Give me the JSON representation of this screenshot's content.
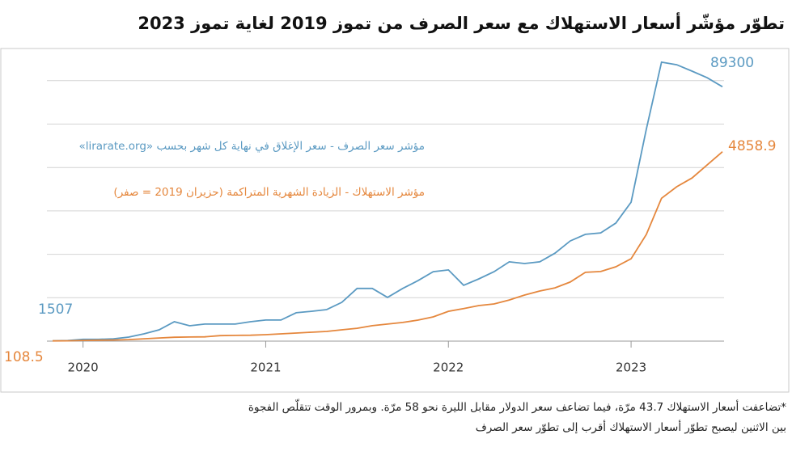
{
  "chart_data": {
    "type": "line",
    "title": "تطوّر مؤشّر أسعار الاستهلاك مع سعر الصرف من تموز 2019 لغاية تموز 2023",
    "note": "*تضاعفت أسعار الاستهلاك 43.7 مرّة، فيما تضاعف سعر الدولار مقابل الليرة نحو 58 مرّة. وبمرور الوقت تتقلّص الفجوة بين الاثنين ليصبح تطوّر أسعار الاستهلاك أقرب إلى تطوّر سعر الصرف",
    "categories": [
      null,
      null,
      "2020",
      null,
      null,
      null,
      null,
      null,
      null,
      null,
      null,
      null,
      null,
      null,
      "2021",
      null,
      null,
      null,
      null,
      null,
      null,
      null,
      null,
      null,
      null,
      null,
      "2022",
      null,
      null,
      null,
      null,
      null,
      null,
      null,
      null,
      null,
      null,
      null,
      "2023",
      null,
      null,
      null,
      null,
      null,
      null
    ],
    "ylim": [
      0,
      100000
    ],
    "y2lim": [
      0,
      7270
    ],
    "grid": true,
    "series": [
      {
        "name": "مؤشر سعر الصرف - سعر الإغلاق في نهاية كل شهر بحسب «lirarate.org»",
        "color": "#5b9ac2",
        "values": [
          1507,
          1600,
          2000,
          2000,
          2200,
          2800,
          3900,
          5300,
          8100,
          6700,
          7300,
          7300,
          7300,
          8100,
          8700,
          8700,
          11200,
          11700,
          12300,
          14800,
          19600,
          19600,
          16500,
          19600,
          22300,
          25400,
          26000,
          20700,
          22900,
          25400,
          28800,
          28200,
          28800,
          31800,
          36000,
          38300,
          38800,
          42200,
          49400,
          74600,
          97800,
          96900,
          94700,
          92400,
          89300
        ]
      },
      {
        "name": "مؤشر الاستهلاك - الزيادة الشهرية المتراكمة (حزيران 2019 = صفر)",
        "color": "#e5873d",
        "axis": "y2",
        "values": [
          108.5,
          110,
          120,
          125,
          130,
          140,
          160,
          180,
          200,
          205,
          210,
          240,
          245,
          250,
          265,
          285,
          305,
          325,
          345,
          385,
          425,
          490,
          530,
          570,
          630,
          710,
          850,
          920,
          995,
          1035,
          1135,
          1260,
          1360,
          1440,
          1585,
          1830,
          1850,
          1970,
          2170,
          2780,
          3690,
          3980,
          4200,
          4530,
          4858.9
        ]
      }
    ]
  }
}
